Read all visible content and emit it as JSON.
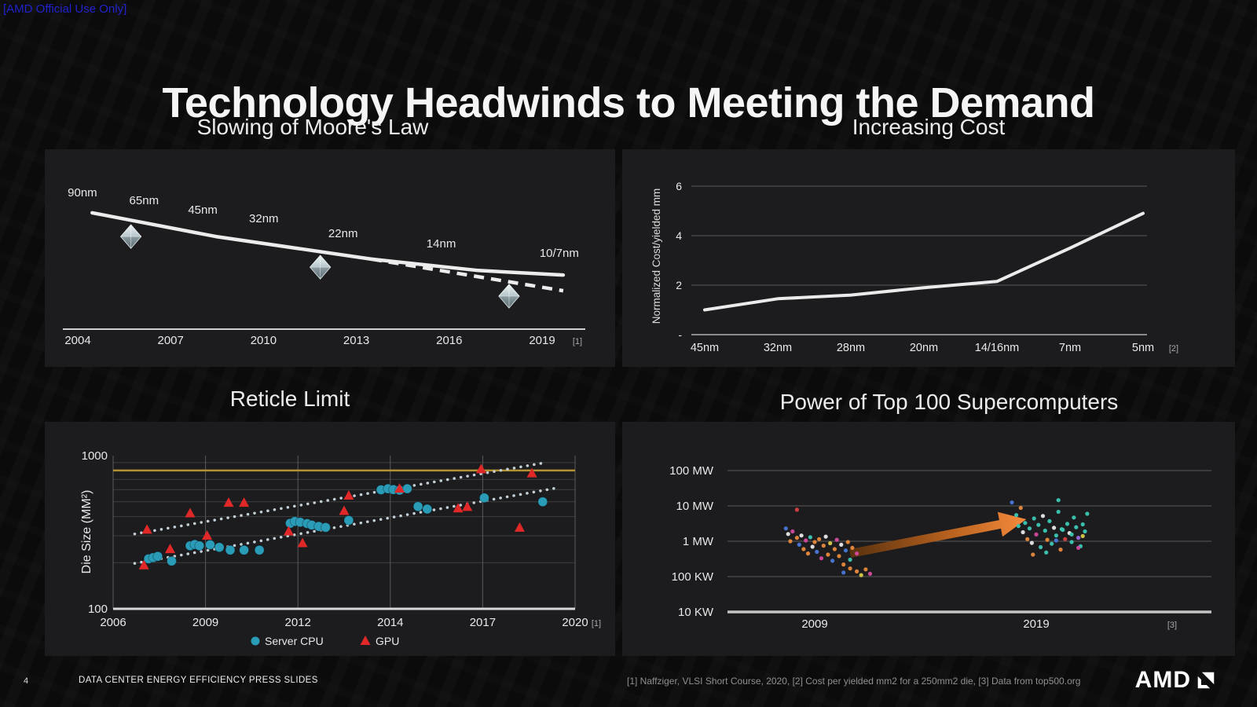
{
  "banner": {
    "text": "[AMD Official Use Only]"
  },
  "slide": {
    "title": "Technology Headwinds to Meeting the Demand"
  },
  "footer": {
    "page_number": "4",
    "deck_title": "DATA CENTER ENERGY EFFICIENCY PRESS SLIDES",
    "references": "[1] Naffziger, VLSI Short Course, 2020,   [2] Cost per yielded mm2 for a 250mm2 die,   [3] Data from top500.org",
    "logo_text": "AMD"
  },
  "colors": {
    "banner_blue": "#2222cc",
    "page_bg": "#0b0b0c",
    "panel_bg": "#1c1c1f",
    "line_white": "#ececec",
    "reticle_gold": "#b49231",
    "cpu_teal": "#2a9cb8",
    "gpu_red": "#e02828",
    "arrow_orange": "#f08a38",
    "trend_dotted": "#c3ced6"
  },
  "chart_data": [
    {
      "id": "slowing-of-moores-law",
      "type": "line",
      "title": "Slowing of Moore's Law",
      "footnote": "[1]",
      "description": "Qualitative density-vs-time trend; solid line = Moore's Law pace, dashed line = slowed actual pace; gem markers near 2005.5, 2011.5 and 2017.5",
      "x_ticks": [
        "2004",
        "2007",
        "2010",
        "2013",
        "2016",
        "2019"
      ],
      "node_labels": [
        {
          "label": "90nm",
          "fx": 0.066,
          "fy": 0.217
        },
        {
          "label": "65nm",
          "fx": 0.174,
          "fy": 0.253
        },
        {
          "label": "45nm",
          "fx": 0.277,
          "fy": 0.296
        },
        {
          "label": "32nm",
          "fx": 0.384,
          "fy": 0.336
        },
        {
          "label": "22nm",
          "fx": 0.523,
          "fy": 0.404
        },
        {
          "label": "14nm",
          "fx": 0.695,
          "fy": 0.451
        },
        {
          "label": "10/7nm",
          "fx": 0.902,
          "fy": 0.495
        }
      ],
      "solid_line": [
        [
          0.083,
          0.292
        ],
        [
          0.3,
          0.401
        ],
        [
          0.573,
          0.505
        ],
        [
          0.76,
          0.557
        ],
        [
          0.909,
          0.578
        ]
      ],
      "dashed_line": [
        [
          0.573,
          0.505
        ],
        [
          0.909,
          0.65
        ]
      ],
      "diamond_markers": [
        [
          0.151,
          0.401
        ],
        [
          0.483,
          0.542
        ],
        [
          0.814,
          0.675
        ]
      ]
    },
    {
      "id": "increasing-cost",
      "type": "line",
      "title": "Increasing Cost",
      "ylabel": "Normalized Cost/yielded mm",
      "categories": [
        "45nm",
        "32nm",
        "28nm",
        "20nm",
        "14/16nm",
        "7nm",
        "5nm"
      ],
      "values": [
        1.0,
        1.45,
        1.6,
        1.9,
        2.15,
        3.5,
        4.9
      ],
      "yticks": [
        {
          "label": "6",
          "value": 6
        },
        {
          "label": "4",
          "value": 4
        },
        {
          "label": "2",
          "value": 2
        },
        {
          "label": "-",
          "value": 0
        }
      ],
      "ylim": [
        0,
        6.6
      ],
      "footnote": "[2]"
    },
    {
      "id": "reticle-limit",
      "type": "scatter",
      "title": "Reticle Limit",
      "ylabel": "Die Size (MM²)",
      "yscale": "log",
      "ylim": [
        100,
        1000
      ],
      "yticks": [
        "1000",
        "100"
      ],
      "x_ticks": [
        2006,
        2009,
        2012,
        2014,
        2017,
        2020
      ],
      "x_ticks_note": "ticks evenly spaced",
      "footnote": "[1]",
      "reticle_limit_value": 800,
      "series": [
        {
          "name": "Server CPU",
          "marker": "circle",
          "color": "#2a9cb8",
          "points": [
            [
              2007.15,
              212
            ],
            [
              2007.3,
              216
            ],
            [
              2007.45,
              220
            ],
            [
              2007.9,
              205
            ],
            [
              2008.5,
              258
            ],
            [
              2008.65,
              263
            ],
            [
              2008.8,
              258
            ],
            [
              2009.15,
              262
            ],
            [
              2009.45,
              252
            ],
            [
              2009.8,
              242
            ],
            [
              2010.25,
              242
            ],
            [
              2010.75,
              242
            ],
            [
              2011.75,
              362
            ],
            [
              2011.9,
              372
            ],
            [
              2012.05,
              368
            ],
            [
              2012.2,
              360
            ],
            [
              2012.3,
              352
            ],
            [
              2012.45,
              345
            ],
            [
              2012.6,
              340
            ],
            [
              2013.1,
              378
            ],
            [
              2013.8,
              598
            ],
            [
              2013.95,
              608
            ],
            [
              2014.1,
              600
            ],
            [
              2014.3,
              595
            ],
            [
              2014.55,
              608
            ],
            [
              2014.9,
              465
            ],
            [
              2015.2,
              448
            ],
            [
              2017.05,
              530
            ],
            [
              2018.95,
              500
            ]
          ]
        },
        {
          "name": "GPU",
          "marker": "triangle",
          "color": "#e02828",
          "points": [
            [
              2007.0,
              192
            ],
            [
              2007.1,
              328
            ],
            [
              2007.85,
              245
            ],
            [
              2008.5,
              420
            ],
            [
              2009.05,
              300
            ],
            [
              2009.75,
              492
            ],
            [
              2010.25,
              492
            ],
            [
              2011.7,
              320
            ],
            [
              2012.1,
              268
            ],
            [
              2013.0,
              435
            ],
            [
              2013.1,
              548
            ],
            [
              2014.3,
              608
            ],
            [
              2016.2,
              452
            ],
            [
              2016.5,
              462
            ],
            [
              2016.95,
              815
            ],
            [
              2018.2,
              338
            ],
            [
              2018.6,
              765
            ]
          ]
        }
      ],
      "trend_lines": [
        {
          "for": "Server CPU",
          "from": [
            2006.7,
            198
          ],
          "to": [
            2019.5,
            620
          ]
        },
        {
          "for": "GPU",
          "from": [
            2006.7,
            308
          ],
          "to": [
            2019.1,
            905
          ]
        }
      ]
    },
    {
      "id": "supercomputer-power",
      "type": "scatter",
      "title": "Power of Top 100 Supercomputers",
      "yscale": "log",
      "yticks": [
        "100 MW",
        "10 MW",
        "1 MW",
        "100 KW",
        "10 KW"
      ],
      "ytick_values_mw": [
        100,
        10,
        1,
        0.1,
        0.01
      ],
      "x_ticks": [
        "2009",
        "2019"
      ],
      "footnote": "[3]",
      "arrow": {
        "from": [
          2010.6,
          0.45
        ],
        "to": [
          2018.55,
          4.2
        ]
      },
      "point_colors": [
        "#e98a3c",
        "#4a78d8",
        "#d44a9e",
        "#e8e8e8",
        "#3cc8b4",
        "#d84040",
        "#d8c84a",
        "#9a6ae0"
      ],
      "clusters": [
        {
          "label": "2009",
          "points": [
            [
              2008.2,
              7.8,
              5
            ],
            [
              2007.7,
              2.3,
              1
            ],
            [
              2007.8,
              1.6,
              3
            ],
            [
              2007.9,
              1.0,
              0
            ],
            [
              2008.0,
              1.9,
              2
            ],
            [
              2008.2,
              1.25,
              0
            ],
            [
              2008.3,
              0.8,
              1
            ],
            [
              2008.4,
              1.45,
              3
            ],
            [
              2008.5,
              0.6,
              0
            ],
            [
              2008.6,
              1.05,
              2
            ],
            [
              2008.7,
              0.45,
              0
            ],
            [
              2008.8,
              1.3,
              4
            ],
            [
              2008.9,
              0.7,
              3
            ],
            [
              2009.0,
              0.95,
              0
            ],
            [
              2009.1,
              0.5,
              1
            ],
            [
              2009.2,
              1.15,
              0
            ],
            [
              2009.3,
              0.33,
              2
            ],
            [
              2009.4,
              0.75,
              0
            ],
            [
              2009.5,
              1.35,
              3
            ],
            [
              2009.6,
              0.42,
              0
            ],
            [
              2009.7,
              0.88,
              6
            ],
            [
              2009.8,
              0.28,
              1
            ],
            [
              2009.9,
              0.6,
              0
            ],
            [
              2010.0,
              1.1,
              2
            ],
            [
              2010.1,
              0.38,
              0
            ],
            [
              2010.2,
              0.8,
              3
            ],
            [
              2010.3,
              0.22,
              0
            ],
            [
              2010.4,
              0.55,
              1
            ],
            [
              2010.5,
              0.95,
              0
            ],
            [
              2010.6,
              0.3,
              4
            ],
            [
              2010.7,
              0.65,
              0
            ],
            [
              2010.9,
              0.45,
              2
            ],
            [
              2010.9,
              0.14,
              0
            ],
            [
              2011.1,
              0.11,
              6
            ],
            [
              2011.3,
              0.16,
              0
            ],
            [
              2011.5,
              0.12,
              2
            ],
            [
              2010.3,
              0.13,
              1
            ],
            [
              2010.6,
              0.17,
              0
            ]
          ]
        },
        {
          "label": "2019",
          "points": [
            [
              2017.9,
              12.5,
              1
            ],
            [
              2018.1,
              5.5,
              4
            ],
            [
              2018.2,
              2.7,
              4
            ],
            [
              2018.3,
              8.8,
              0
            ],
            [
              2018.4,
              1.8,
              3
            ],
            [
              2018.5,
              3.3,
              4
            ],
            [
              2018.6,
              1.15,
              0
            ],
            [
              2018.7,
              2.3,
              4
            ],
            [
              2018.8,
              0.9,
              3
            ],
            [
              2018.9,
              4.4,
              4
            ],
            [
              2019.0,
              1.55,
              2
            ],
            [
              2019.1,
              2.9,
              4
            ],
            [
              2019.2,
              0.68,
              4
            ],
            [
              2019.3,
              5.2,
              3
            ],
            [
              2019.4,
              2.0,
              4
            ],
            [
              2019.5,
              1.1,
              0
            ],
            [
              2019.6,
              3.7,
              4
            ],
            [
              2019.7,
              0.85,
              4
            ],
            [
              2019.8,
              2.4,
              3
            ],
            [
              2019.9,
              1.45,
              4
            ],
            [
              2020.0,
              6.8,
              4
            ],
            [
              2020.1,
              0.58,
              0
            ],
            [
              2020.2,
              2.1,
              4
            ],
            [
              2020.3,
              1.15,
              5
            ],
            [
              2020.4,
              3.1,
              4
            ],
            [
              2020.5,
              1.7,
              3
            ],
            [
              2020.6,
              0.95,
              4
            ],
            [
              2020.7,
              4.7,
              4
            ],
            [
              2020.8,
              2.5,
              4
            ],
            [
              2020.9,
              1.25,
              7
            ],
            [
              2021.0,
              0.72,
              4
            ],
            [
              2021.1,
              3.0,
              4
            ],
            [
              2021.2,
              1.9,
              4
            ],
            [
              2020.0,
              14.5,
              4
            ],
            [
              2019.9,
              1.05,
              1
            ],
            [
              2020.15,
              2.2,
              4
            ],
            [
              2021.3,
              6.0,
              4
            ],
            [
              2020.6,
              1.55,
              4
            ],
            [
              2019.45,
              0.48,
              4
            ],
            [
              2018.85,
              0.42,
              0
            ],
            [
              2020.9,
              0.65,
              2
            ],
            [
              2021.1,
              1.4,
              6
            ]
          ]
        }
      ]
    }
  ]
}
